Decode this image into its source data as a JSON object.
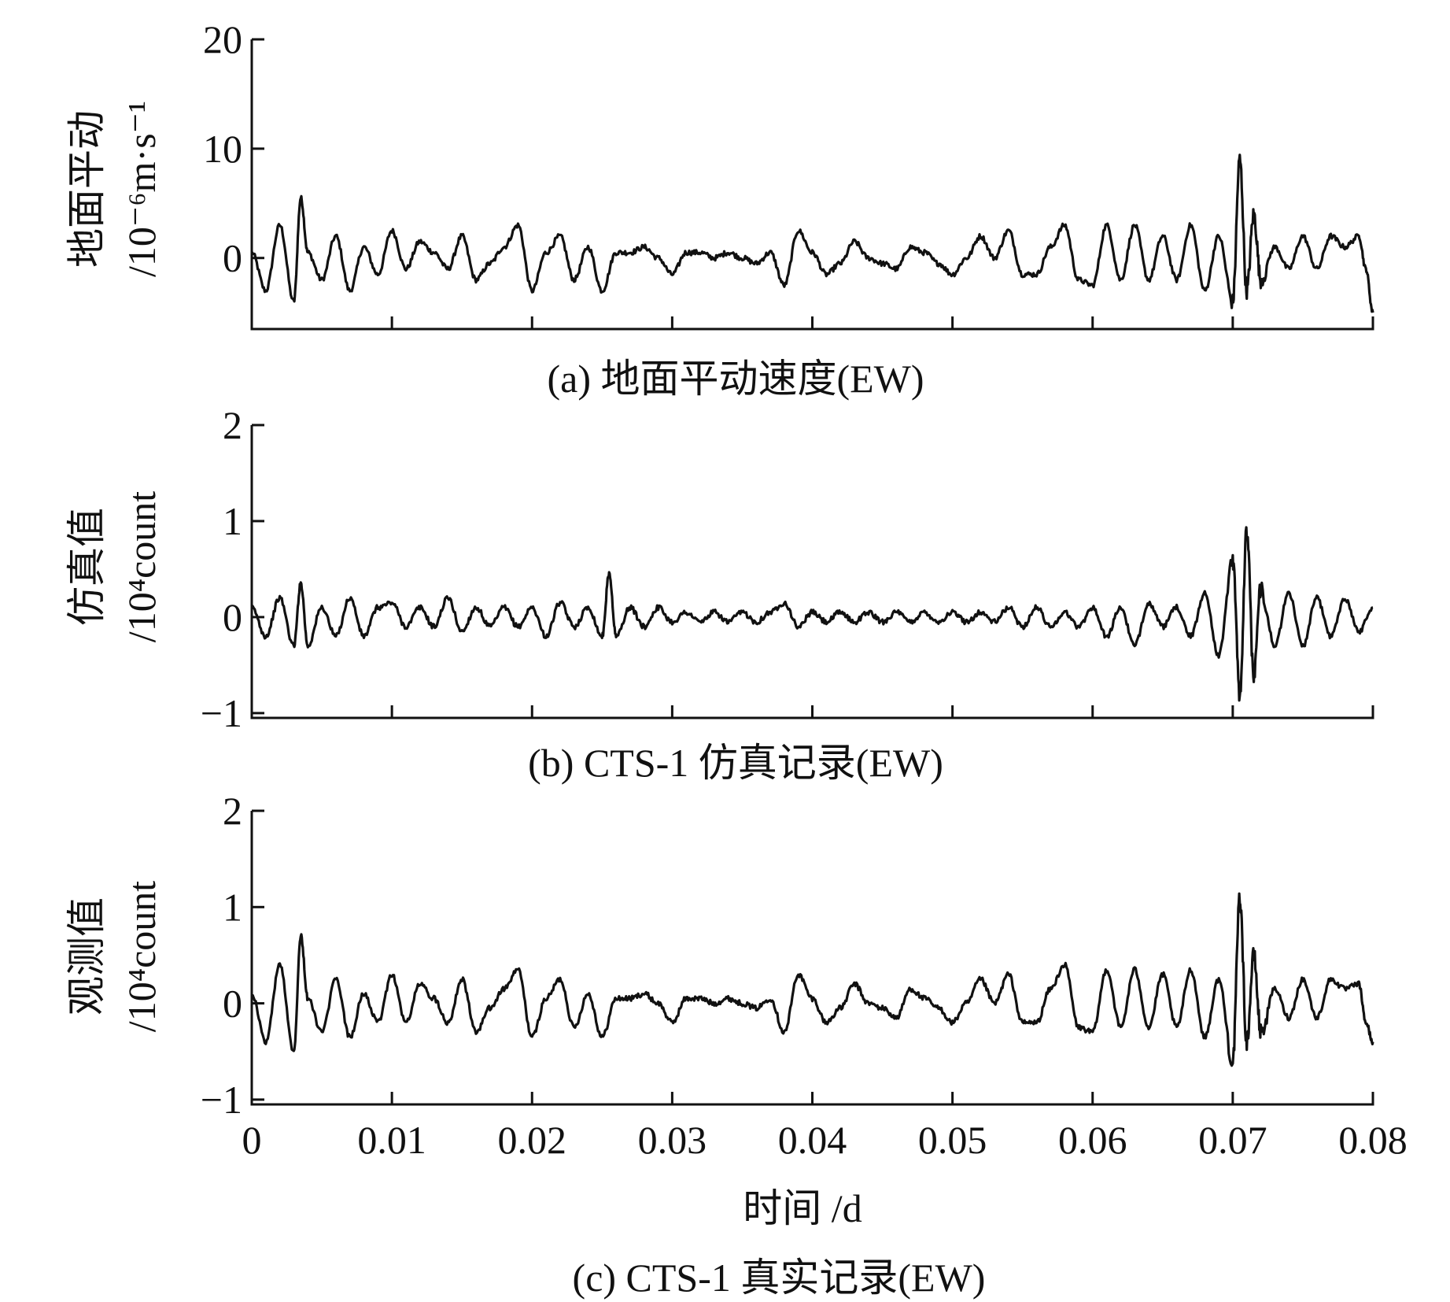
{
  "chart_data": [
    {
      "type": "line",
      "caption": "(a) 地面平动速度(EW)",
      "ylabel": "地面平动",
      "yunit": "/10⁻⁶m·s⁻¹",
      "xlim": [
        0,
        0.08
      ],
      "ylim": [
        -6.5,
        20
      ],
      "yticks": [
        0,
        10,
        20
      ],
      "ytick_labels": [
        "0",
        "10",
        "20"
      ],
      "x": [
        0,
        0.001,
        0.002,
        0.003,
        0.0035,
        0.004,
        0.005,
        0.006,
        0.007,
        0.008,
        0.009,
        0.01,
        0.011,
        0.012,
        0.013,
        0.014,
        0.015,
        0.016,
        0.017,
        0.018,
        0.019,
        0.02,
        0.021,
        0.022,
        0.023,
        0.024,
        0.025,
        0.026,
        0.027,
        0.028,
        0.029,
        0.03,
        0.031,
        0.032,
        0.033,
        0.034,
        0.035,
        0.036,
        0.037,
        0.038,
        0.039,
        0.04,
        0.041,
        0.042,
        0.043,
        0.044,
        0.045,
        0.046,
        0.047,
        0.048,
        0.049,
        0.05,
        0.051,
        0.052,
        0.053,
        0.054,
        0.055,
        0.056,
        0.057,
        0.058,
        0.059,
        0.06,
        0.061,
        0.062,
        0.063,
        0.064,
        0.065,
        0.066,
        0.067,
        0.068,
        0.069,
        0.07,
        0.0705,
        0.071,
        0.0715,
        0.072,
        0.073,
        0.074,
        0.075,
        0.076,
        0.077,
        0.078,
        0.079,
        0.0795,
        0.08
      ],
      "y": [
        0.5,
        -3,
        3,
        -4,
        5.5,
        0.5,
        -2,
        2,
        -3,
        1,
        -1.5,
        2.5,
        -1,
        1.5,
        0.5,
        -1,
        2,
        -2,
        -0.5,
        1,
        3,
        -3,
        0.5,
        2,
        -2,
        1,
        -3,
        0.5,
        0.5,
        1,
        0,
        -1.5,
        0.5,
        0.5,
        0,
        0.5,
        0,
        -0.5,
        0.5,
        -2.5,
        2.5,
        0.5,
        -1.5,
        -0.5,
        1.5,
        0,
        -0.5,
        -1,
        1,
        0.5,
        -0.5,
        -1.5,
        0,
        2,
        0,
        2.5,
        -1.5,
        -1.5,
        1,
        3,
        -2,
        -2.5,
        3,
        -2,
        3,
        -2,
        2,
        -2,
        3,
        -3,
        2,
        -4,
        9,
        -3,
        4,
        -2,
        1,
        -1,
        2,
        -1,
        2,
        1,
        2,
        -1,
        -5
      ]
    },
    {
      "type": "line",
      "caption": "(b) CTS-1 仿真记录(EW)",
      "ylabel": "仿真值",
      "yunit": "/10⁴count",
      "xlim": [
        0,
        0.08
      ],
      "ylim": [
        -1.05,
        2
      ],
      "yticks": [
        -1,
        0,
        1,
        2
      ],
      "ytick_labels": [
        "−1",
        "0",
        "1",
        "2"
      ],
      "x": [
        0,
        0.001,
        0.002,
        0.003,
        0.0035,
        0.004,
        0.005,
        0.006,
        0.007,
        0.008,
        0.009,
        0.01,
        0.011,
        0.012,
        0.013,
        0.014,
        0.015,
        0.016,
        0.017,
        0.018,
        0.019,
        0.02,
        0.021,
        0.022,
        0.023,
        0.024,
        0.025,
        0.0255,
        0.026,
        0.027,
        0.028,
        0.029,
        0.03,
        0.031,
        0.032,
        0.033,
        0.034,
        0.035,
        0.036,
        0.037,
        0.038,
        0.039,
        0.04,
        0.041,
        0.042,
        0.043,
        0.044,
        0.045,
        0.046,
        0.047,
        0.048,
        0.049,
        0.05,
        0.051,
        0.052,
        0.053,
        0.054,
        0.055,
        0.056,
        0.057,
        0.058,
        0.059,
        0.06,
        0.061,
        0.062,
        0.063,
        0.064,
        0.065,
        0.066,
        0.067,
        0.068,
        0.069,
        0.07,
        0.0705,
        0.071,
        0.0715,
        0.072,
        0.073,
        0.074,
        0.075,
        0.076,
        0.077,
        0.078,
        0.079,
        0.08
      ],
      "y": [
        0.1,
        -0.2,
        0.2,
        -0.3,
        0.35,
        -0.3,
        0.1,
        -0.2,
        0.2,
        -0.2,
        0.1,
        0.15,
        -0.1,
        0.1,
        -0.1,
        0.2,
        -0.15,
        0.1,
        -0.1,
        0.1,
        -0.1,
        0.1,
        -0.2,
        0.15,
        -0.1,
        0.1,
        -0.2,
        0.45,
        -0.2,
        0.1,
        -0.1,
        0.1,
        -0.05,
        0.05,
        -0.05,
        0.05,
        -0.05,
        0.05,
        -0.05,
        0.05,
        0.15,
        -0.1,
        0.05,
        -0.05,
        0.05,
        -0.05,
        0.05,
        -0.05,
        0.05,
        -0.05,
        0.05,
        -0.05,
        0.05,
        -0.05,
        0.05,
        -0.05,
        0.1,
        -0.1,
        0.1,
        -0.1,
        0.05,
        -0.1,
        0.1,
        -0.2,
        0.1,
        -0.3,
        0.15,
        -0.1,
        0.1,
        -0.2,
        0.25,
        -0.4,
        0.6,
        -0.8,
        0.9,
        -0.6,
        0.3,
        -0.3,
        0.25,
        -0.3,
        0.2,
        -0.2,
        0.2,
        -0.15,
        0.1
      ]
    },
    {
      "type": "line",
      "caption": "(c) CTS-1 真实记录(EW)",
      "ylabel": "观测值",
      "yunit": "/10⁴count",
      "xlabel": "时间 /d",
      "xlim": [
        0,
        0.08
      ],
      "ylim": [
        -1.05,
        2
      ],
      "yticks": [
        -1,
        0,
        1,
        2
      ],
      "ytick_labels": [
        "−1",
        "0",
        "1",
        "2"
      ],
      "xticks": [
        0,
        0.01,
        0.02,
        0.03,
        0.04,
        0.05,
        0.06,
        0.07,
        0.08
      ],
      "xtick_labels": [
        "0",
        "0.01",
        "0.02",
        "0.03",
        "0.04",
        "0.05",
        "0.06",
        "0.07",
        "0.08"
      ],
      "x": [
        0,
        0.001,
        0.002,
        0.003,
        0.0035,
        0.004,
        0.005,
        0.006,
        0.007,
        0.008,
        0.009,
        0.01,
        0.011,
        0.012,
        0.013,
        0.014,
        0.015,
        0.016,
        0.017,
        0.018,
        0.019,
        0.02,
        0.021,
        0.022,
        0.023,
        0.024,
        0.025,
        0.026,
        0.027,
        0.028,
        0.029,
        0.03,
        0.031,
        0.032,
        0.033,
        0.034,
        0.035,
        0.036,
        0.037,
        0.038,
        0.039,
        0.04,
        0.041,
        0.042,
        0.043,
        0.044,
        0.045,
        0.046,
        0.047,
        0.048,
        0.049,
        0.05,
        0.051,
        0.052,
        0.053,
        0.054,
        0.055,
        0.056,
        0.057,
        0.058,
        0.059,
        0.06,
        0.061,
        0.062,
        0.063,
        0.064,
        0.065,
        0.066,
        0.067,
        0.068,
        0.069,
        0.07,
        0.0705,
        0.071,
        0.0715,
        0.072,
        0.073,
        0.074,
        0.075,
        0.076,
        0.077,
        0.078,
        0.079,
        0.0795,
        0.08
      ],
      "y": [
        0.1,
        -0.4,
        0.4,
        -0.5,
        0.7,
        0.05,
        -0.3,
        0.25,
        -0.35,
        0.1,
        -0.2,
        0.3,
        -0.2,
        0.2,
        0.05,
        -0.2,
        0.25,
        -0.3,
        -0.05,
        0.15,
        0.35,
        -0.35,
        0.05,
        0.25,
        -0.25,
        0.1,
        -0.35,
        0.05,
        0.05,
        0.1,
        0.0,
        -0.2,
        0.05,
        0.05,
        0.0,
        0.05,
        0.0,
        -0.05,
        0.05,
        -0.3,
        0.3,
        0.05,
        -0.2,
        -0.05,
        0.2,
        0.0,
        -0.05,
        -0.15,
        0.15,
        0.05,
        -0.05,
        -0.2,
        0.0,
        0.25,
        0.0,
        0.3,
        -0.2,
        -0.2,
        0.15,
        0.4,
        -0.25,
        -0.3,
        0.35,
        -0.25,
        0.35,
        -0.25,
        0.3,
        -0.25,
        0.35,
        -0.35,
        0.25,
        -0.6,
        1.1,
        -0.4,
        0.5,
        -0.3,
        0.15,
        -0.15,
        0.25,
        -0.15,
        0.25,
        0.15,
        0.2,
        -0.2,
        -0.4
      ]
    }
  ]
}
